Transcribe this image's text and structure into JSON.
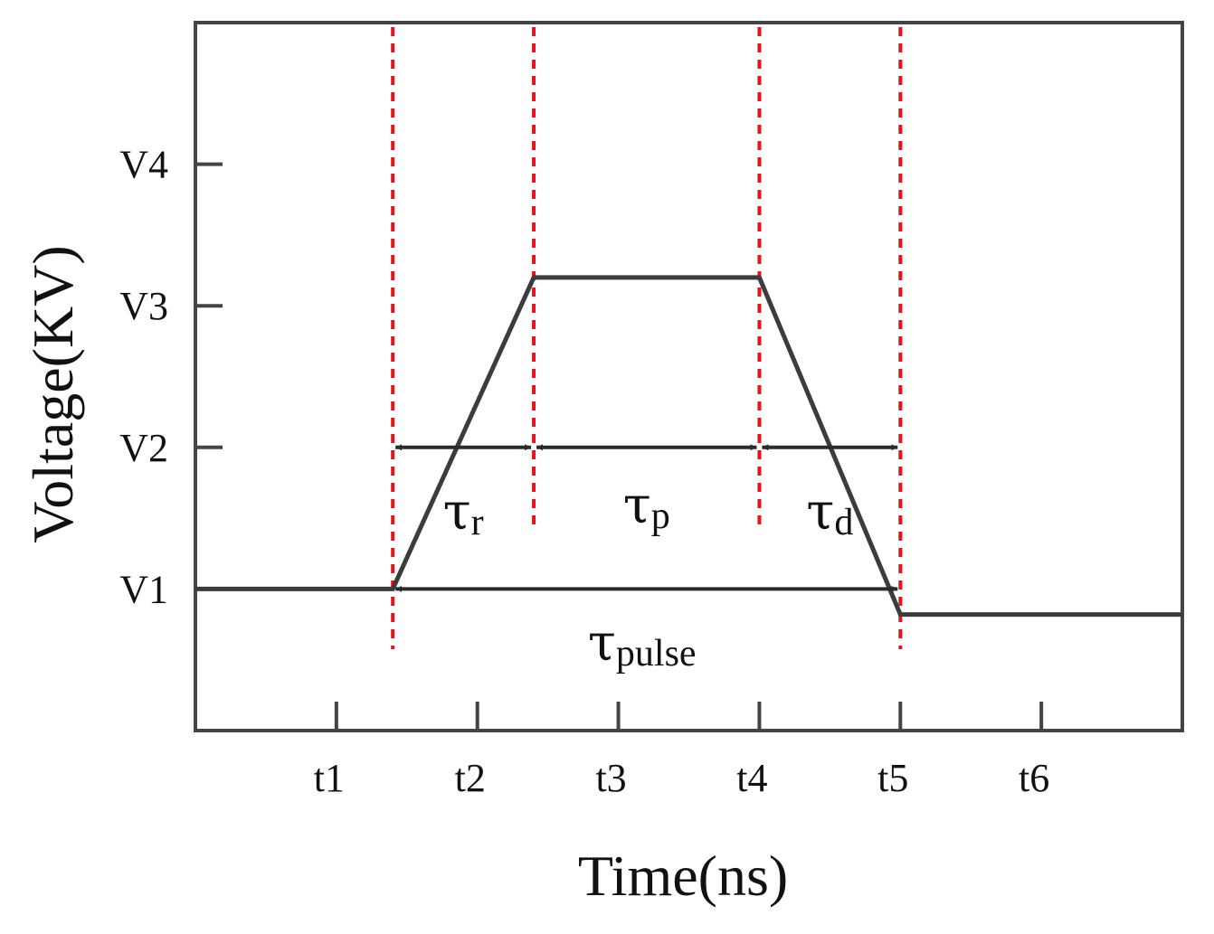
{
  "chart_data": {
    "type": "line",
    "xlabel": "Time(ns)",
    "ylabel": "Voltage(KV)",
    "x_ticks": [
      "t1",
      "t2",
      "t3",
      "t4",
      "t5",
      "t6"
    ],
    "y_ticks": [
      "V1",
      "V2",
      "V3",
      "V4"
    ],
    "xlim": [
      0,
      7
    ],
    "ylim": [
      0,
      5
    ],
    "grid": false,
    "legend": "none",
    "series": [
      {
        "x": [
          0,
          1.4,
          2.4,
          4.0,
          5.0,
          5.0,
          7.0
        ],
        "y": [
          1.0,
          1.0,
          3.2,
          3.2,
          0.82,
          0.82,
          0.82
        ]
      }
    ],
    "markers": {
      "vertical_dashed_x": [
        1.4,
        2.4,
        4.0,
        5.0
      ],
      "color": "#e8141b"
    },
    "intervals": [
      {
        "symbol": "τ",
        "sub": "r",
        "x_start": 1.4,
        "x_end": 2.4,
        "y": 2.0
      },
      {
        "symbol": "τ",
        "sub": "p",
        "x_start": 2.4,
        "x_end": 4.0,
        "y": 2.0
      },
      {
        "symbol": "τ",
        "sub": "d",
        "x_start": 4.0,
        "x_end": 5.0,
        "y": 2.0
      },
      {
        "symbol": "τ",
        "sub": "pulse",
        "x_start": 1.4,
        "x_end": 5.0,
        "y": 1.0
      }
    ],
    "colors": {
      "line": "#3c3c3c",
      "dashed": "#e8141b",
      "frame": "#444444"
    }
  }
}
